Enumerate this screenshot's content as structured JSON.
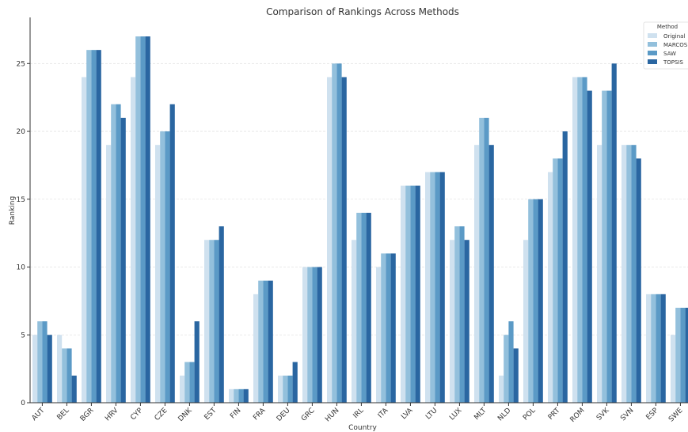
{
  "chart_data": {
    "type": "bar",
    "title": "Comparison of Rankings Across Methods",
    "xlabel": "Country",
    "ylabel": "Ranking",
    "ylim": [
      0,
      28.4
    ],
    "yticks": [
      0,
      5,
      10,
      15,
      20,
      25
    ],
    "grid": "horizontal dashed",
    "legend": {
      "title": "Method",
      "placement": "top-right"
    },
    "categories": [
      "AUT",
      "BEL",
      "BGR",
      "HRV",
      "CYP",
      "CZE",
      "DNK",
      "EST",
      "FIN",
      "FRA",
      "DEU",
      "GRC",
      "HUN",
      "IRL",
      "ITA",
      "LVA",
      "LTU",
      "LUX",
      "MLT",
      "NLD",
      "POL",
      "PRT",
      "ROM",
      "SVK",
      "SVN",
      "ESP",
      "SWE"
    ],
    "series": [
      {
        "name": "Original",
        "color": "#cfe1ef",
        "values": [
          5,
          5,
          24,
          19,
          24,
          19,
          2,
          12,
          1,
          8,
          2,
          10,
          24,
          12,
          10,
          16,
          17,
          12,
          19,
          2,
          12,
          17,
          24,
          19,
          19,
          8,
          5
        ]
      },
      {
        "name": "MARCOS",
        "color": "#93c0dc",
        "values": [
          6,
          4,
          26,
          22,
          27,
          20,
          3,
          12,
          1,
          9,
          2,
          10,
          25,
          14,
          11,
          16,
          17,
          13,
          21,
          5,
          15,
          18,
          24,
          23,
          19,
          8,
          7
        ]
      },
      {
        "name": "SAW",
        "color": "#5b9ac6",
        "values": [
          6,
          4,
          26,
          22,
          27,
          20,
          3,
          12,
          1,
          9,
          2,
          10,
          25,
          14,
          11,
          16,
          17,
          13,
          21,
          6,
          15,
          18,
          24,
          23,
          19,
          8,
          7
        ]
      },
      {
        "name": "TOPSIS",
        "color": "#2a66a1",
        "values": [
          5,
          2,
          26,
          21,
          27,
          22,
          6,
          13,
          1,
          9,
          3,
          10,
          24,
          14,
          11,
          16,
          17,
          12,
          19,
          4,
          15,
          20,
          23,
          25,
          18,
          8,
          7
        ]
      }
    ]
  }
}
